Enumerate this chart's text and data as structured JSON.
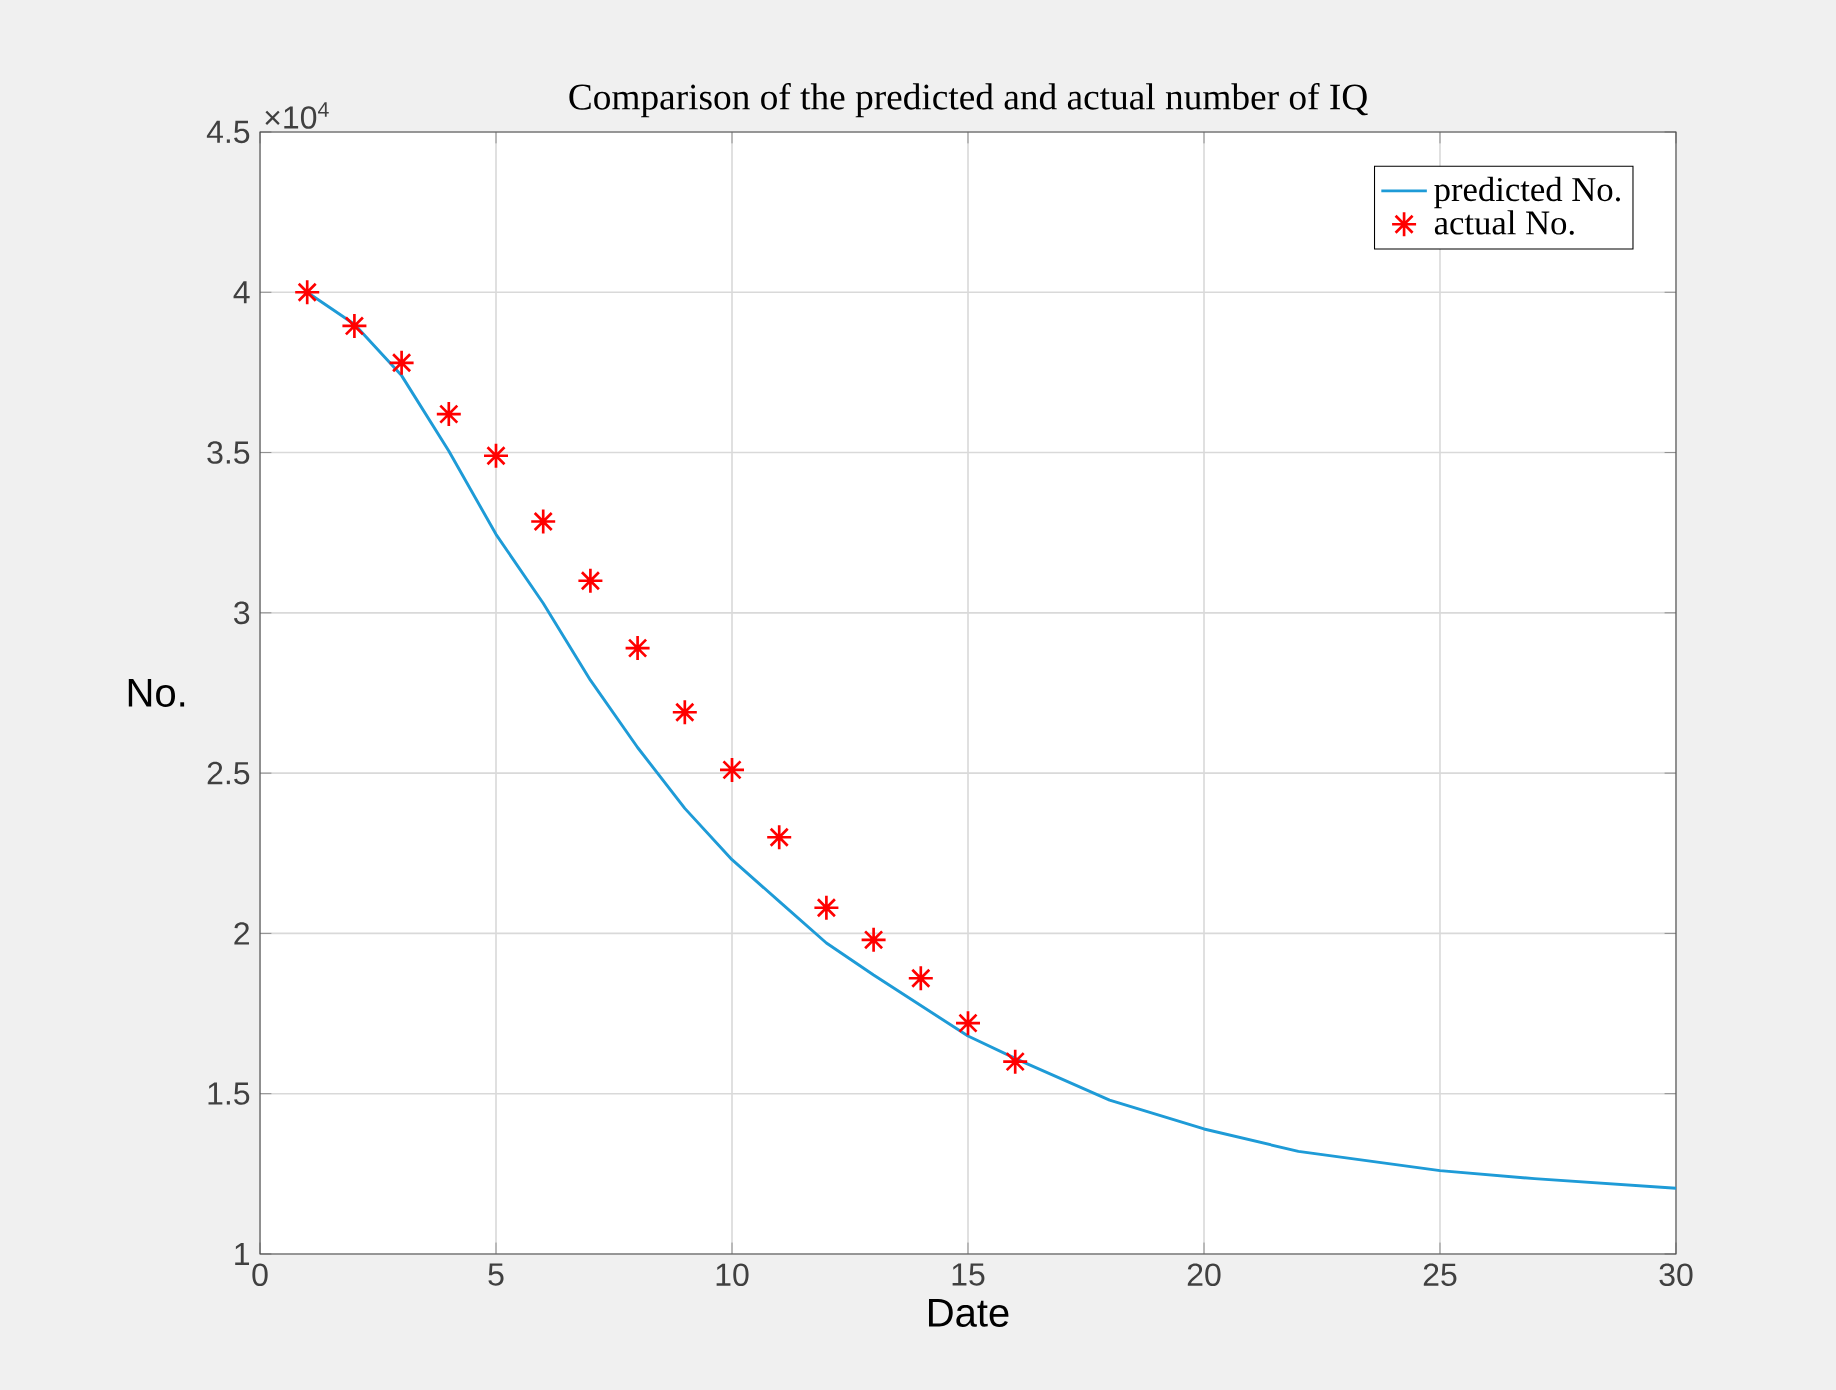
{
  "chart_data": {
    "type": "line",
    "title": "Comparison of the predicted and actual number of IQ",
    "xlabel": "Date",
    "ylabel": "No.",
    "annotations": [
      "×10$^{4}$"
    ],
    "xlim": [
      0,
      30
    ],
    "xticks": [
      0,
      5,
      10,
      15,
      20,
      25,
      30
    ],
    "ylim": [
      1,
      4.5
    ],
    "yticks": [
      1,
      1.5,
      2,
      2.5,
      3,
      3.5,
      4,
      4.5
    ],
    "grid": true,
    "legend": "top right",
    "series": [
      {
        "name": "predicted No.",
        "color": "#1e9bd7",
        "marker": "none",
        "line_style": "solid",
        "x": [
          1,
          2,
          3,
          4,
          5,
          6,
          7,
          8,
          9,
          10,
          11,
          12,
          13,
          14,
          15,
          16,
          18,
          20,
          22,
          25,
          27,
          30
        ],
        "values": [
          4.0,
          3.9,
          3.74,
          3.505,
          3.245,
          3.03,
          2.79,
          2.58,
          2.39,
          2.23,
          2.1,
          1.97,
          1.87,
          1.775,
          1.68,
          1.61,
          1.48,
          1.39,
          1.32,
          1.26,
          1.235,
          1.205
        ]
      },
      {
        "name": "actual No.",
        "type": "scatter",
        "color": "#ff0000",
        "marker": "cross",
        "x": [
          1,
          2,
          3,
          4,
          5,
          6,
          7,
          8,
          9,
          10,
          11,
          12,
          13,
          14,
          15,
          16
        ],
        "values": [
          4.0,
          3.895,
          3.78,
          3.62,
          3.49,
          3.285,
          3.1,
          2.89,
          2.69,
          2.51,
          2.3,
          2.08,
          1.98,
          1.86,
          1.72,
          1.6
        ]
      }
    ]
  }
}
